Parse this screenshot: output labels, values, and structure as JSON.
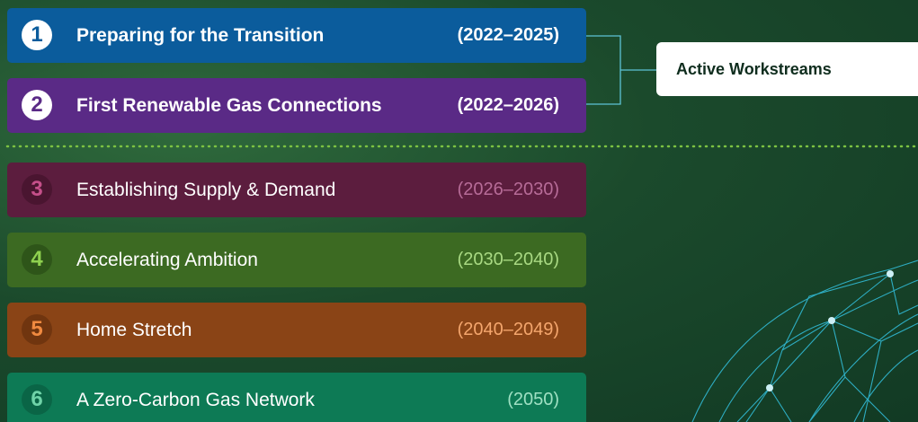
{
  "rows": [
    {
      "number": 1,
      "title": "Preparing for the Transition",
      "years": "(2022–2025)"
    },
    {
      "number": 2,
      "title": "First Renewable Gas Connections",
      "years": "(2022–2026)"
    },
    {
      "number": 3,
      "title": "Establishing Supply & Demand",
      "years": "(2026–2030)"
    },
    {
      "number": 4,
      "title": "Accelerating Ambition",
      "years": "(2030–2040)"
    },
    {
      "number": 5,
      "title": "Home Stretch",
      "years": "(2040–2049)"
    },
    {
      "number": 6,
      "title": "A Zero-Carbon Gas Network",
      "years": "(2050)"
    }
  ],
  "label": "Active Workstreams"
}
